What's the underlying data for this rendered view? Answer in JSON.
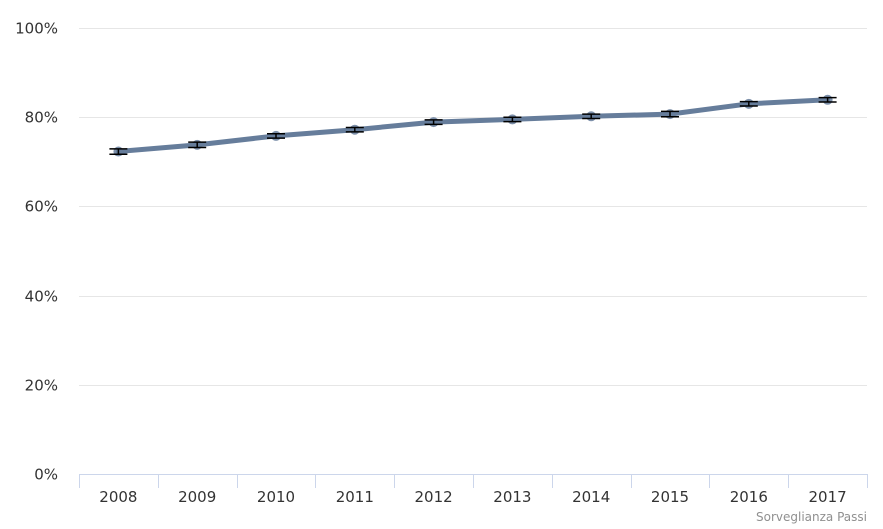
{
  "chart_data": {
    "type": "line",
    "title": "",
    "xlabel": "",
    "ylabel": "",
    "categories": [
      "2008",
      "2009",
      "2010",
      "2011",
      "2012",
      "2013",
      "2014",
      "2015",
      "2016",
      "2017"
    ],
    "series": [
      {
        "values": [
          72.3,
          73.8,
          75.8,
          77.2,
          78.9,
          79.5,
          80.2,
          80.7,
          83.0,
          83.9
        ],
        "ci_low": [
          71.7,
          73.2,
          75.3,
          76.7,
          78.4,
          79.0,
          79.7,
          80.1,
          82.5,
          83.4
        ],
        "ci_high": [
          72.9,
          74.4,
          76.3,
          77.7,
          79.4,
          80.0,
          80.7,
          81.3,
          83.5,
          84.4
        ],
        "color": "#667d9b"
      }
    ],
    "ylim": [
      0,
      100
    ],
    "yticks": [
      0,
      20,
      40,
      60,
      80,
      100
    ],
    "ytick_labels": [
      "0%",
      "20%",
      "40%",
      "60%",
      "80%",
      "100%"
    ],
    "grid": true,
    "legend": "none",
    "colors": {
      "line": "#667d9b",
      "marker": "#667d9b",
      "errorbar": "#000000",
      "grid": "#e6e6e6",
      "axis": "#ccd6eb"
    }
  },
  "credit": "Sorveglianza Passi"
}
